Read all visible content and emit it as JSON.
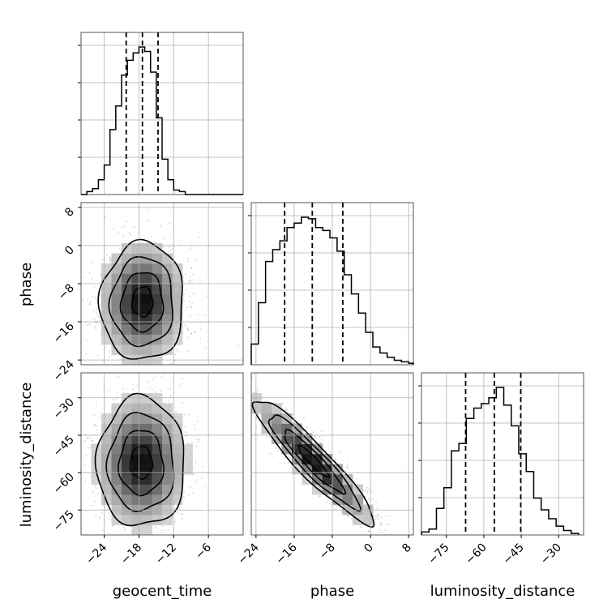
{
  "chart_data": {
    "type": "corner",
    "parameters": [
      "geocent_time",
      "phase",
      "luminosity_distance"
    ],
    "axis_labels": [
      "geocent_time",
      "phase",
      "luminosity_distance"
    ],
    "ranges": [
      [
        -28,
        0
      ],
      [
        -25,
        9
      ],
      [
        -85,
        -20
      ]
    ],
    "ticks": [
      [
        -24,
        -18,
        -12,
        -6
      ],
      [
        -24,
        -16,
        -8,
        0,
        8
      ],
      [
        -75,
        -60,
        -45,
        -30
      ]
    ],
    "tick_labels": [
      [
        "−24",
        "−18",
        "−12",
        "−6"
      ],
      [
        "−24",
        "−16",
        "−8",
        "0",
        "8"
      ],
      [
        "−75",
        "−60",
        "−45",
        "−30"
      ]
    ],
    "quantiles": [
      [
        -20.2,
        -17.4,
        -14.7
      ],
      [
        -18.0,
        -12.2,
        -5.8
      ],
      [
        -67.3,
        -55.8,
        -45.2
      ]
    ],
    "histograms": [
      {
        "param": "geocent_time",
        "bin_edges": [
          -28,
          -27,
          -26,
          -25,
          -24,
          -23,
          -22,
          -21,
          -20,
          -19,
          -18,
          -17,
          -16,
          -15,
          -14,
          -13,
          -12,
          -11,
          -10,
          -9,
          -8,
          -7,
          -6,
          -5,
          -4,
          -3,
          -2,
          -1,
          0
        ],
        "counts": [
          0,
          0.02,
          0.04,
          0.1,
          0.2,
          0.44,
          0.6,
          0.81,
          0.91,
          0.96,
          1.0,
          0.97,
          0.83,
          0.52,
          0.24,
          0.1,
          0.03,
          0.02,
          0,
          0,
          0,
          0,
          0,
          0,
          0,
          0,
          0,
          0
        ]
      },
      {
        "param": "phase",
        "bin_edges": [
          -25,
          -23.5,
          -22,
          -20.5,
          -19,
          -17.5,
          -16,
          -14.5,
          -13,
          -11.5,
          -10,
          -8.5,
          -7,
          -5.5,
          -4,
          -2.5,
          -1,
          0.5,
          2,
          3.5,
          5,
          6.5,
          8,
          9
        ],
        "counts": [
          0.14,
          0.42,
          0.7,
          0.78,
          0.84,
          0.93,
          0.96,
          1.0,
          0.99,
          0.93,
          0.91,
          0.86,
          0.77,
          0.61,
          0.48,
          0.35,
          0.22,
          0.12,
          0.08,
          0.05,
          0.03,
          0.02,
          0.01
        ]
      },
      {
        "param": "luminosity_distance",
        "bin_edges": [
          -85,
          -82,
          -79,
          -76,
          -73,
          -70,
          -67,
          -64,
          -61,
          -58,
          -55,
          -52,
          -49,
          -46,
          -43,
          -40,
          -37,
          -34,
          -31,
          -28,
          -25,
          -22
        ],
        "counts": [
          0.02,
          0.04,
          0.18,
          0.32,
          0.57,
          0.62,
          0.79,
          0.86,
          0.89,
          0.93,
          1.0,
          0.88,
          0.74,
          0.55,
          0.43,
          0.25,
          0.17,
          0.11,
          0.06,
          0.03,
          0.01
        ]
      }
    ],
    "joint_distributions": [
      {
        "x": "geocent_time",
        "y": "phase",
        "center": [
          -17.4,
          -11.8
        ],
        "spread": [
          3.6,
          6.2
        ],
        "correlation": 0.02,
        "contour_levels": [
          "0.5 sigma",
          "1 sigma",
          "1.5 sigma",
          "2 sigma"
        ]
      },
      {
        "x": "geocent_time",
        "y": "luminosity_distance",
        "center": [
          -17.6,
          -56.0
        ],
        "spread": [
          3.8,
          13.0
        ],
        "correlation": 0.0,
        "contour_levels": [
          "0.5 sigma",
          "1 sigma",
          "1.5 sigma",
          "2 sigma"
        ]
      },
      {
        "x": "phase",
        "y": "luminosity_distance",
        "center": [
          -12.0,
          -55.5
        ],
        "spread": [
          6.3,
          12.5
        ],
        "correlation": -0.93,
        "contour_levels": [
          "0.5 sigma",
          "1 sigma",
          "1.5 sigma",
          "2 sigma"
        ]
      }
    ],
    "grid": true,
    "tick_label_rotation_deg": 45
  }
}
